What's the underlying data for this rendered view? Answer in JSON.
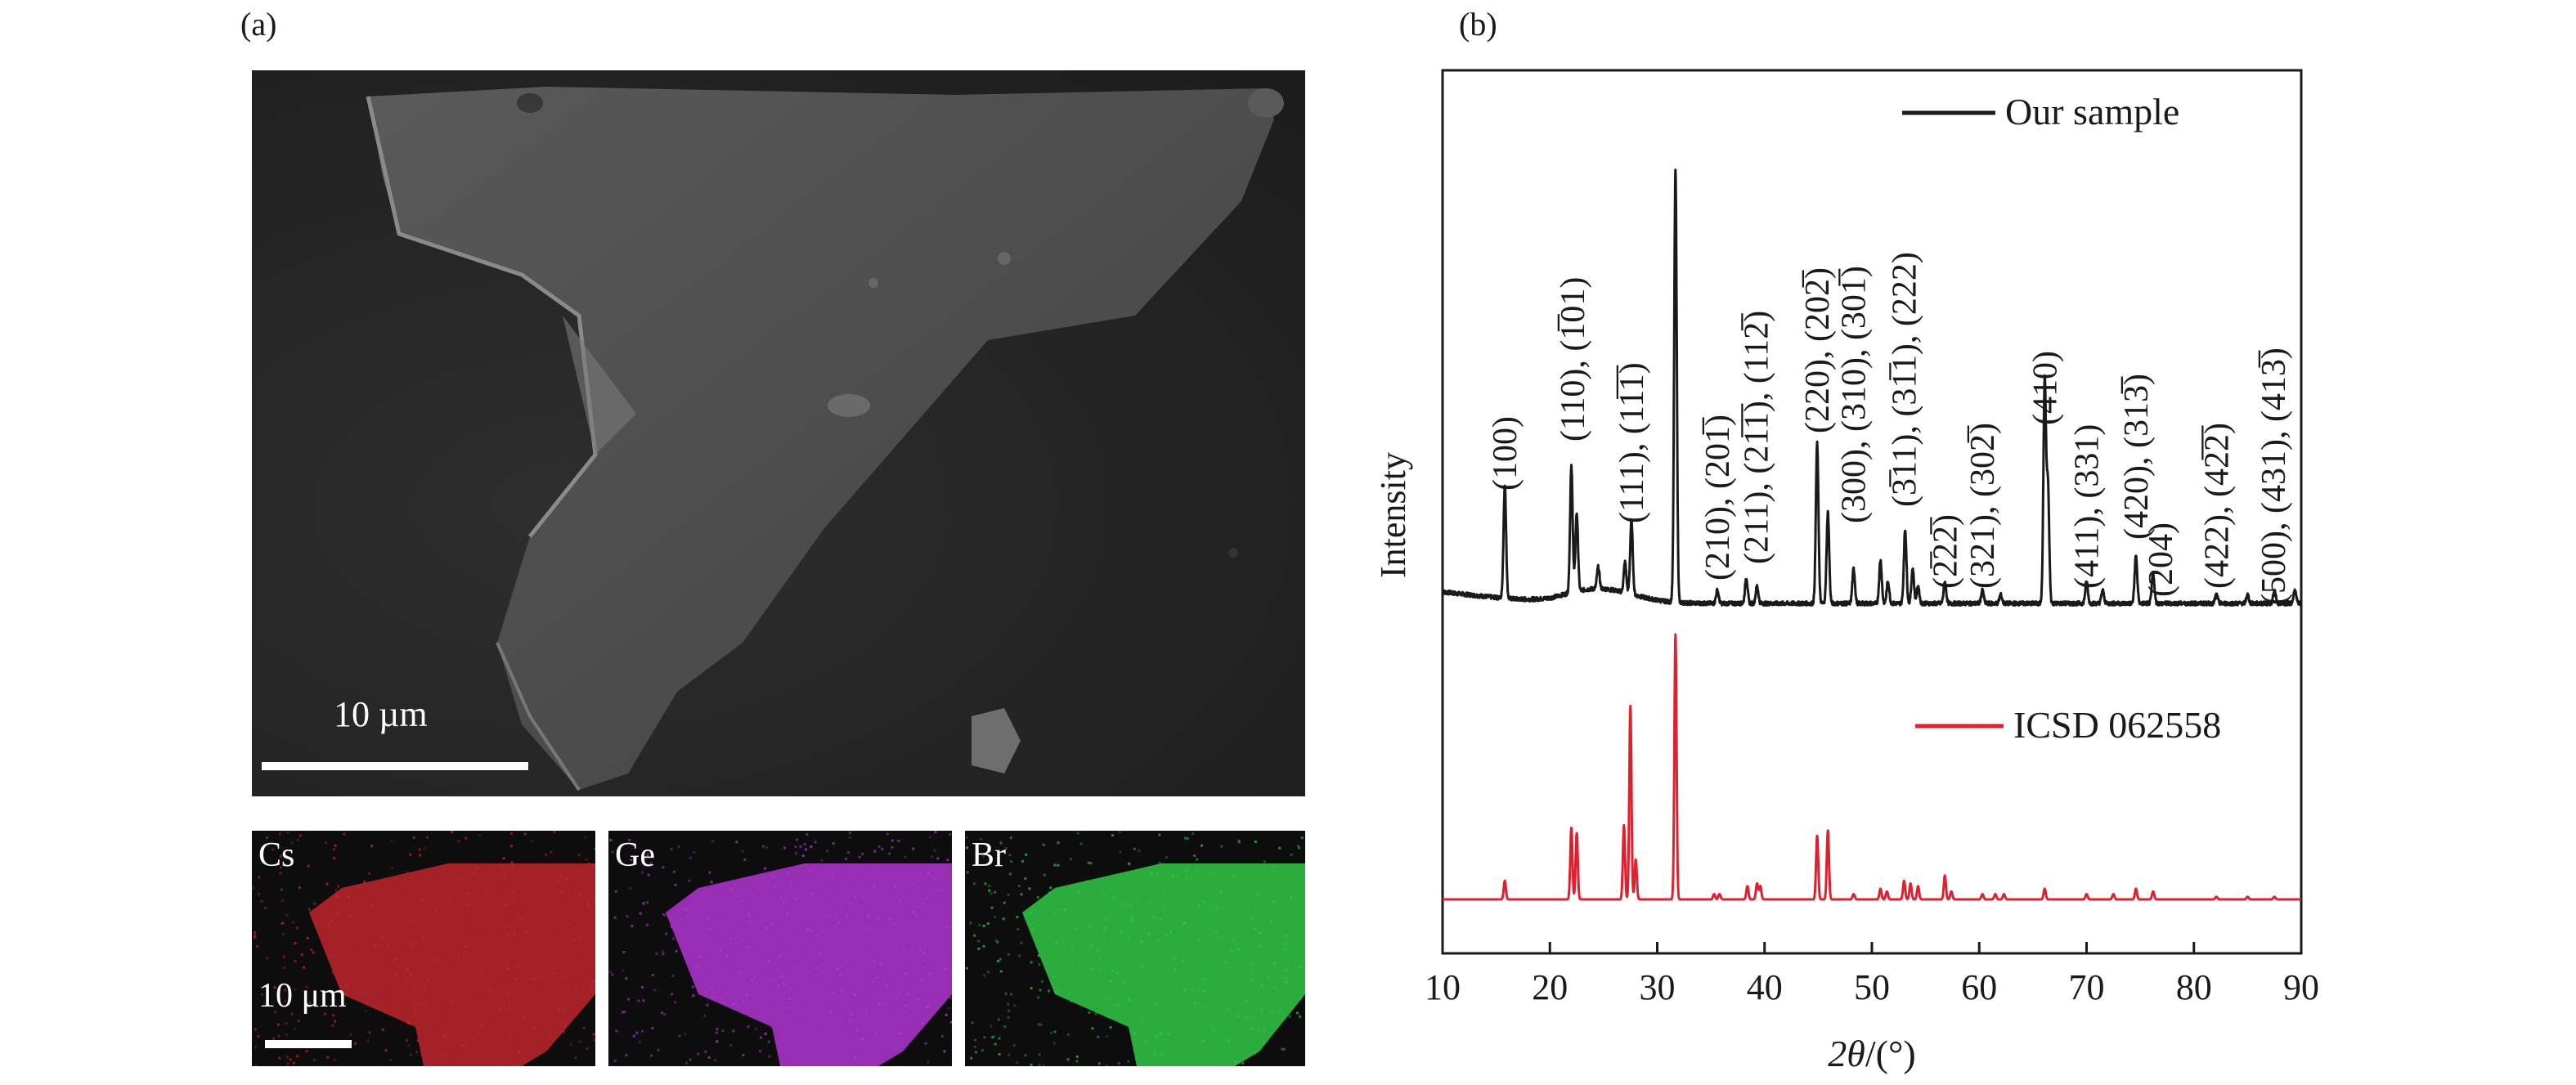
{
  "figure": {
    "panel_a": {
      "label": "(a)",
      "sem_scale": "10 µm",
      "map_scale": "10 μm",
      "maps": [
        {
          "element": "Cs",
          "color": "#c8282e"
        },
        {
          "element": "Ge",
          "color": "#b43cd2"
        },
        {
          "element": "Br",
          "color": "#32c846"
        }
      ]
    },
    "panel_b": {
      "label": "(b)"
    }
  },
  "chart_data": {
    "type": "line",
    "xlabel_italic": "2θ",
    "xlabel_unit": "/(°)",
    "ylabel": "Intensity",
    "xlim": [
      10,
      90
    ],
    "xticks": [
      "10",
      "20",
      "30",
      "40",
      "50",
      "60",
      "70",
      "80",
      "90"
    ],
    "yticks": [],
    "grid": false,
    "legend_placement": "top-right",
    "series": [
      {
        "name": "Our sample",
        "color": "#1a1a1a",
        "baseline": 0,
        "peaks": [
          [
            15.8,
            0.26
          ],
          [
            22.0,
            0.29
          ],
          [
            22.5,
            0.18
          ],
          [
            24.5,
            0.05
          ],
          [
            27.0,
            0.07
          ],
          [
            27.6,
            0.17
          ],
          [
            31.7,
            1.0
          ],
          [
            35.6,
            0.03
          ],
          [
            38.3,
            0.06
          ],
          [
            39.3,
            0.04
          ],
          [
            44.9,
            0.37
          ],
          [
            45.9,
            0.21
          ],
          [
            48.3,
            0.08
          ],
          [
            50.8,
            0.1
          ],
          [
            51.5,
            0.05
          ],
          [
            53.1,
            0.17
          ],
          [
            53.8,
            0.08
          ],
          [
            54.3,
            0.04
          ],
          [
            56.8,
            0.05
          ],
          [
            60.3,
            0.03
          ],
          [
            62.0,
            0.02
          ],
          [
            66.1,
            0.51
          ],
          [
            66.4,
            0.27
          ],
          [
            70.0,
            0.05
          ],
          [
            71.5,
            0.03
          ],
          [
            74.6,
            0.11
          ],
          [
            76.2,
            0.07
          ],
          [
            82.1,
            0.02
          ],
          [
            85.0,
            0.02
          ],
          [
            87.5,
            0.03
          ],
          [
            89.4,
            0.03
          ]
        ]
      },
      {
        "name": "ICSD 062558",
        "color": "#e0202e",
        "baseline": 0,
        "peaks": [
          [
            15.8,
            0.07
          ],
          [
            22.0,
            0.27
          ],
          [
            22.5,
            0.25
          ],
          [
            26.9,
            0.28
          ],
          [
            27.5,
            0.73
          ],
          [
            28.0,
            0.15
          ],
          [
            31.7,
            1.0
          ],
          [
            35.3,
            0.02
          ],
          [
            35.8,
            0.02
          ],
          [
            38.4,
            0.05
          ],
          [
            39.3,
            0.06
          ],
          [
            39.6,
            0.05
          ],
          [
            44.9,
            0.24
          ],
          [
            45.9,
            0.26
          ],
          [
            48.3,
            0.02
          ],
          [
            50.8,
            0.04
          ],
          [
            51.4,
            0.03
          ],
          [
            53.0,
            0.07
          ],
          [
            53.6,
            0.06
          ],
          [
            54.3,
            0.05
          ],
          [
            56.8,
            0.09
          ],
          [
            57.4,
            0.03
          ],
          [
            60.3,
            0.02
          ],
          [
            61.5,
            0.02
          ],
          [
            62.3,
            0.02
          ],
          [
            66.1,
            0.04
          ],
          [
            70.0,
            0.02
          ],
          [
            72.5,
            0.02
          ],
          [
            74.6,
            0.04
          ],
          [
            76.2,
            0.03
          ],
          [
            82.1,
            0.01
          ],
          [
            85.0,
            0.01
          ],
          [
            87.5,
            0.01
          ]
        ]
      }
    ],
    "peak_labels": [
      {
        "x": 15.8,
        "text": "(100)"
      },
      {
        "x": 22.1,
        "text": "(110), (1̅01)"
      },
      {
        "x": 27.6,
        "text": "(111), (11̅1̅)"
      },
      {
        "x": 35.6,
        "text": "(210), (201̅)"
      },
      {
        "x": 39.2,
        "text": "(211), (21̅1̅), (112̅)"
      },
      {
        "x": 44.9,
        "text": "(220), (202̅)"
      },
      {
        "x": 48.3,
        "text": "(300), (310), (301̅)"
      },
      {
        "x": 53.0,
        "text": "(3̅11), (31̅1), (222)"
      },
      {
        "x": 56.8,
        "text": "(2̅22̅)"
      },
      {
        "x": 60.3,
        "text": "(321), (302̅)"
      },
      {
        "x": 66.1,
        "text": "(410)"
      },
      {
        "x": 70.0,
        "text": "(411), (331)"
      },
      {
        "x": 74.6,
        "text": "(420), (313̅)"
      },
      {
        "x": 76.9,
        "text": "(204)"
      },
      {
        "x": 82.1,
        "text": "(422), (42̅2̅)"
      },
      {
        "x": 87.4,
        "text": "(500), (431), (413̅)"
      }
    ]
  }
}
